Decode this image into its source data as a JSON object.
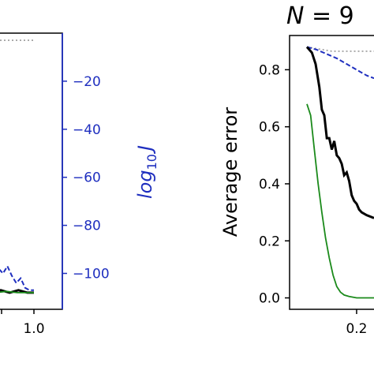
{
  "chart_data": [
    {
      "type": "line",
      "title": "",
      "xlabel": "",
      "ylabel": "",
      "x_ticks": [
        "1.0"
      ],
      "y2label": "log10 J",
      "y2label_parts": {
        "base": "log",
        "sub": "10",
        "var": "J"
      },
      "y2_ticks": [
        "−20",
        "−40",
        "−60",
        "−80",
        "−100"
      ],
      "y2_tick_values": [
        -20,
        -40,
        -60,
        -80,
        -100
      ],
      "x_visible_range": [
        0.55,
        1.1
      ],
      "y2lim": [
        -111,
        0
      ],
      "grid": false,
      "colors": {
        "black": "#000000",
        "green": "#1b8a1b",
        "blue": "#1f2fbf",
        "gray": "#9a9a9a",
        "axis_blue": "#1f2fbf"
      },
      "series": [
        {
          "style": "dotted",
          "color": "gray",
          "points": [
            [
              0.55,
              -3
            ],
            [
              0.65,
              -3
            ],
            [
              0.75,
              -3
            ],
            [
              0.85,
              -3
            ],
            [
              0.95,
              -3
            ],
            [
              1.0,
              -3
            ]
          ]
        },
        {
          "style": "dashed",
          "color": "blue",
          "points": [
            [
              0.55,
              -92
            ],
            [
              0.62,
              -96
            ],
            [
              0.68,
              -98
            ],
            [
              0.72,
              -100
            ],
            [
              0.76,
              -97
            ],
            [
              0.8,
              -101
            ],
            [
              0.84,
              -104
            ],
            [
              0.88,
              -102
            ],
            [
              0.92,
              -106
            ],
            [
              0.96,
              -107
            ],
            [
              1.0,
              -107
            ]
          ]
        },
        {
          "style": "solid-thick",
          "color": "black",
          "points": [
            [
              0.55,
              -107
            ],
            [
              0.62,
              -108
            ],
            [
              0.7,
              -107
            ],
            [
              0.78,
              -108
            ],
            [
              0.86,
              -107
            ],
            [
              0.94,
              -108
            ],
            [
              1.0,
              -108
            ]
          ]
        },
        {
          "style": "solid",
          "color": "green",
          "points": [
            [
              0.55,
              -108
            ],
            [
              0.65,
              -108
            ],
            [
              0.75,
              -107.5
            ],
            [
              0.85,
              -108
            ],
            [
              0.95,
              -108
            ],
            [
              1.0,
              -108
            ]
          ]
        }
      ]
    },
    {
      "type": "line",
      "title": "N = 9",
      "title_parts": {
        "var": "N",
        "rest": " = 9"
      },
      "xlabel": "",
      "ylabel": "Average error",
      "x_ticks": [
        "0.2"
      ],
      "x_tick_values": [
        0.2
      ],
      "y_ticks": [
        "0.0",
        "0.2",
        "0.4",
        "0.6",
        "0.8"
      ],
      "y_tick_values": [
        0.0,
        0.2,
        0.4,
        0.6,
        0.8
      ],
      "x_visible_range": [
        0.0,
        0.27
      ],
      "ylim": [
        -0.04,
        0.92
      ],
      "grid": false,
      "series": [
        {
          "style": "dotted",
          "color": "gray",
          "points": [
            [
              0.0,
              0.88
            ],
            [
              0.1,
              0.865
            ],
            [
              0.27,
              0.865
            ]
          ]
        },
        {
          "style": "dashed",
          "color": "blue",
          "points": [
            [
              0.0,
              0.88
            ],
            [
              0.04,
              0.87
            ],
            [
              0.08,
              0.855
            ],
            [
              0.12,
              0.84
            ],
            [
              0.16,
              0.82
            ],
            [
              0.2,
              0.8
            ],
            [
              0.24,
              0.78
            ],
            [
              0.27,
              0.77
            ]
          ]
        },
        {
          "style": "solid-thick",
          "color": "black",
          "points": [
            [
              0.0,
              0.88
            ],
            [
              0.02,
              0.86
            ],
            [
              0.035,
              0.82
            ],
            [
              0.05,
              0.74
            ],
            [
              0.06,
              0.66
            ],
            [
              0.07,
              0.64
            ],
            [
              0.08,
              0.56
            ],
            [
              0.09,
              0.56
            ],
            [
              0.1,
              0.52
            ],
            [
              0.11,
              0.55
            ],
            [
              0.12,
              0.5
            ],
            [
              0.13,
              0.49
            ],
            [
              0.14,
              0.47
            ],
            [
              0.15,
              0.43
            ],
            [
              0.16,
              0.44
            ],
            [
              0.17,
              0.41
            ],
            [
              0.18,
              0.36
            ],
            [
              0.19,
              0.34
            ],
            [
              0.2,
              0.33
            ],
            [
              0.21,
              0.31
            ],
            [
              0.22,
              0.3
            ],
            [
              0.24,
              0.29
            ],
            [
              0.27,
              0.28
            ]
          ]
        },
        {
          "style": "solid",
          "color": "green",
          "points": [
            [
              0.0,
              0.68
            ],
            [
              0.015,
              0.64
            ],
            [
              0.03,
              0.52
            ],
            [
              0.045,
              0.4
            ],
            [
              0.06,
              0.3
            ],
            [
              0.075,
              0.21
            ],
            [
              0.09,
              0.14
            ],
            [
              0.105,
              0.08
            ],
            [
              0.12,
              0.04
            ],
            [
              0.135,
              0.02
            ],
            [
              0.15,
              0.01
            ],
            [
              0.17,
              0.005
            ],
            [
              0.2,
              0.0
            ],
            [
              0.27,
              0.0
            ]
          ]
        }
      ]
    }
  ]
}
